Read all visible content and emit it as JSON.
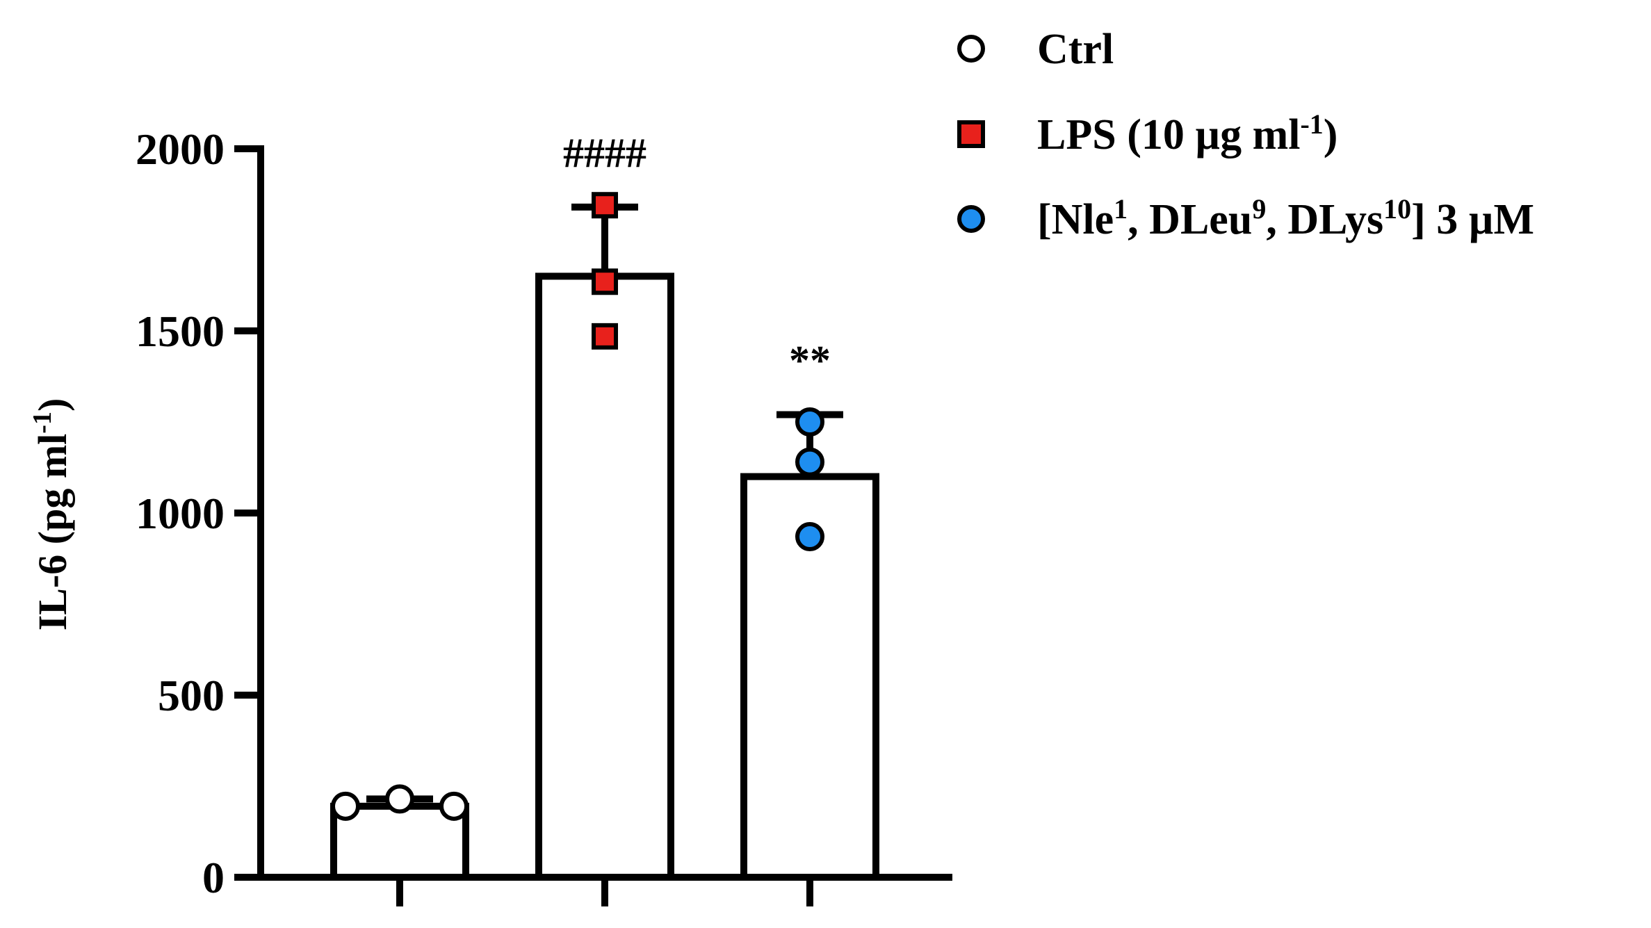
{
  "chart_data": {
    "type": "bar",
    "ylabel": "IL-6 (pg ml",
    "ylabel_sup": "-1",
    "ylabel_close": ")",
    "ylim": [
      0,
      2000
    ],
    "yticks": [
      0,
      500,
      1000,
      1500,
      2000
    ],
    "ytick_labels": [
      "0",
      "500",
      "1000",
      "1500",
      "2000"
    ],
    "grid": false,
    "legend_position": "top-right",
    "groups": [
      {
        "name": "Ctrl",
        "mean": 195,
        "sd": 20,
        "points": [
          195,
          215,
          195
        ],
        "marker": "circle",
        "color": "#ffffff",
        "annotation": ""
      },
      {
        "name": "LPS (10 µg ml-1)",
        "mean": 1650,
        "sd": 190,
        "points": [
          1845,
          1635,
          1485
        ],
        "marker": "square",
        "color": "#e8211c",
        "annotation": "####"
      },
      {
        "name": "[Nle1, DLeu9, DLys10] 3 µM",
        "mean": 1100,
        "sd": 170,
        "points": [
          1250,
          1140,
          935
        ],
        "marker": "circle",
        "color": "#1e8ef0",
        "annotation": "**"
      }
    ],
    "legend": [
      {
        "marker": "circle",
        "color": "#ffffff",
        "parts": [
          {
            "t": "Ctrl"
          }
        ]
      },
      {
        "marker": "square",
        "color": "#e8211c",
        "parts": [
          {
            "t": "LPS (10 µg ml"
          },
          {
            "t": "-1",
            "sup": true
          },
          {
            "t": ")"
          }
        ]
      },
      {
        "marker": "circle",
        "color": "#1e8ef0",
        "parts": [
          {
            "t": "[Nle"
          },
          {
            "t": "1",
            "sup": true
          },
          {
            "t": ", DLeu"
          },
          {
            "t": "9",
            "sup": true
          },
          {
            "t": ", DLys"
          },
          {
            "t": "10",
            "sup": true
          },
          {
            "t": "] 3 µM"
          }
        ]
      }
    ]
  }
}
